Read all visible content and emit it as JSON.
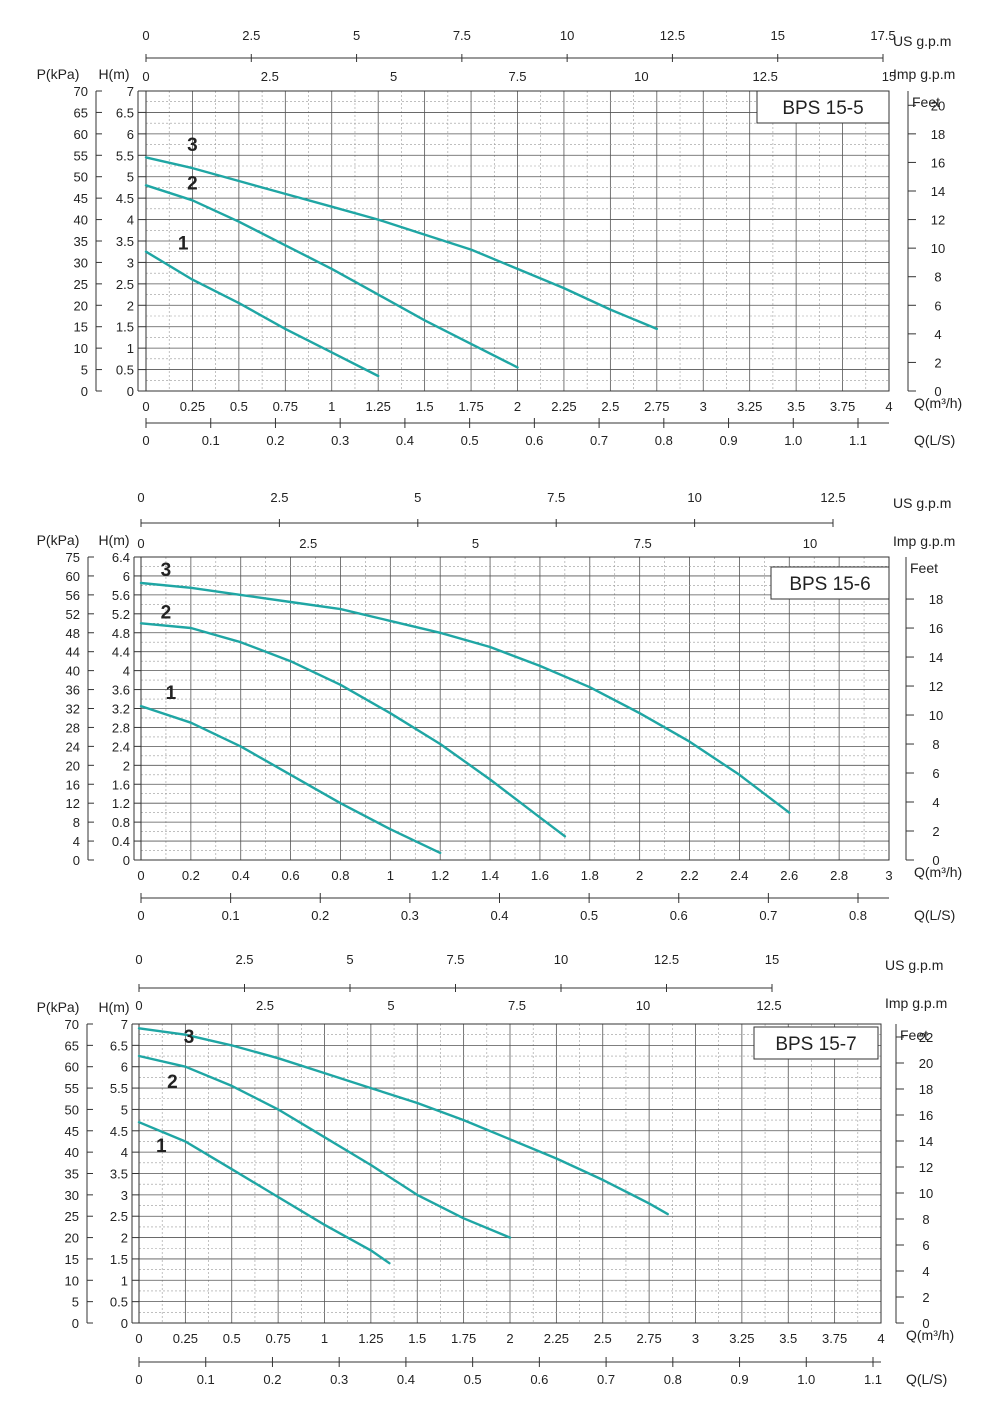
{
  "colors": {
    "curve": "#1fa6a4",
    "grid": "#555555",
    "text": "#222222"
  },
  "chart_data": [
    {
      "type": "line",
      "title": "BPS  15-5",
      "xlabel": "Q(m³/h)",
      "ylabel_left_outer": "P(kPa)",
      "ylabel_left_inner": "H(m)",
      "ylabel_right": "Feet",
      "xlabel_bottom2": "Q(L/S)",
      "xlabel_top1": "US  g.p.m",
      "xlabel_top2": "Imp  g.p.m",
      "xlim": [
        0,
        4
      ],
      "ylim": [
        0,
        7
      ],
      "legend": "top-right",
      "grid": true,
      "x_ticks": [
        "0",
        "0.25",
        "0.5",
        "0.75",
        "1",
        "1.25",
        "1.5",
        "1.75",
        "2",
        "2.25",
        "2.5",
        "2.75",
        "3",
        "3.25",
        "3.5",
        "3.75",
        "4"
      ],
      "h_ticks": [
        "0",
        "0.5",
        "1",
        "1.5",
        "2",
        "2.5",
        "3",
        "3.5",
        "4",
        "4.5",
        "5",
        "5.5",
        "6",
        "6.5",
        "7"
      ],
      "kpa_ticks": [
        "0",
        "5",
        "10",
        "15",
        "20",
        "25",
        "30",
        "35",
        "40",
        "45",
        "50",
        "55",
        "60",
        "65",
        "70"
      ],
      "feet_ticks": [
        "0",
        "2",
        "4",
        "6",
        "8",
        "10",
        "12",
        "14",
        "16",
        "18",
        "20"
      ],
      "ls_ticks": [
        "0",
        "0.1",
        "0.2",
        "0.3",
        "0.4",
        "0.5",
        "0.6",
        "0.7",
        "0.8",
        "0.9",
        "1.0",
        "1.1"
      ],
      "us_ticks": [
        "0",
        "2.5",
        "5",
        "7.5",
        "10",
        "12.5",
        "15",
        "17.5"
      ],
      "imp_ticks": [
        "0",
        "2.5",
        "5",
        "7.5",
        "10",
        "12.5",
        "15"
      ],
      "series": [
        {
          "name": "1",
          "x": [
            0,
            0.25,
            0.5,
            0.75,
            1,
            1.25
          ],
          "y": [
            3.25,
            2.6,
            2.05,
            1.45,
            0.9,
            0.35
          ]
        },
        {
          "name": "2",
          "x": [
            0,
            0.25,
            0.5,
            0.75,
            1,
            1.25,
            1.5,
            1.75,
            2
          ],
          "y": [
            4.8,
            4.45,
            3.95,
            3.4,
            2.85,
            2.25,
            1.65,
            1.1,
            0.55
          ]
        },
        {
          "name": "3",
          "x": [
            0,
            0.25,
            0.5,
            0.75,
            1,
            1.25,
            1.5,
            1.75,
            2,
            2.25,
            2.5,
            2.75
          ],
          "y": [
            5.45,
            5.2,
            4.9,
            4.6,
            4.3,
            4.0,
            3.65,
            3.3,
            2.85,
            2.4,
            1.9,
            1.45
          ]
        }
      ],
      "series_label_pos": [
        [
          0.2,
          3.3
        ],
        [
          0.25,
          4.7
        ],
        [
          0.25,
          5.6
        ]
      ]
    },
    {
      "type": "line",
      "title": "BPS 15-6",
      "xlabel": "Q(m³/h)",
      "ylabel_left_outer": "P(kPa)",
      "ylabel_left_inner": "H(m)",
      "ylabel_right": "Feet",
      "xlabel_bottom2": "Q(L/S)",
      "xlabel_top1": "US  g.p.m",
      "xlabel_top2": "Imp  g.p.m",
      "xlim": [
        0,
        3
      ],
      "ylim": [
        0,
        6.4
      ],
      "legend": "top-right",
      "grid": true,
      "x_ticks": [
        "0",
        "0.2",
        "0.4",
        "0.6",
        "0.8",
        "1",
        "1.2",
        "1.4",
        "1.6",
        "1.8",
        "2",
        "2.2",
        "2.4",
        "2.6",
        "2.8",
        "3"
      ],
      "h_ticks": [
        "0",
        "0.4",
        "0.8",
        "1.2",
        "1.6",
        "2",
        "2.4",
        "2.8",
        "3.2",
        "3.6",
        "4",
        "4.4",
        "4.8",
        "5.2",
        "5.6",
        "6",
        "6.4"
      ],
      "kpa_ticks": [
        "0",
        "4",
        "8",
        "12",
        "16",
        "20",
        "24",
        "28",
        "32",
        "36",
        "40",
        "44",
        "48",
        "52",
        "56",
        "60",
        "75"
      ],
      "feet_ticks": [
        "0",
        "2",
        "4",
        "6",
        "8",
        "10",
        "12",
        "14",
        "16",
        "18"
      ],
      "ls_ticks": [
        "0",
        "0.1",
        "0.2",
        "0.3",
        "0.4",
        "0.5",
        "0.6",
        "0.7",
        "0.8"
      ],
      "us_ticks": [
        "0",
        "2.5",
        "5",
        "7.5",
        "10",
        "12.5"
      ],
      "imp_ticks": [
        "0",
        "2.5",
        "5",
        "7.5",
        "10"
      ],
      "series": [
        {
          "name": "1",
          "x": [
            0,
            0.2,
            0.4,
            0.6,
            0.8,
            1,
            1.2
          ],
          "y": [
            3.25,
            2.9,
            2.4,
            1.8,
            1.2,
            0.65,
            0.15
          ]
        },
        {
          "name": "2",
          "x": [
            0,
            0.2,
            0.4,
            0.6,
            0.8,
            1,
            1.2,
            1.4,
            1.6,
            1.7
          ],
          "y": [
            5.0,
            4.9,
            4.6,
            4.2,
            3.7,
            3.1,
            2.45,
            1.7,
            0.9,
            0.5
          ]
        },
        {
          "name": "3",
          "x": [
            0,
            0.2,
            0.4,
            0.6,
            0.8,
            1,
            1.2,
            1.4,
            1.6,
            1.8,
            2,
            2.2,
            2.4,
            2.6
          ],
          "y": [
            5.85,
            5.75,
            5.6,
            5.45,
            5.3,
            5.05,
            4.8,
            4.5,
            4.1,
            3.65,
            3.1,
            2.5,
            1.8,
            1.0
          ]
        }
      ],
      "series_label_pos": [
        [
          0.12,
          3.4
        ],
        [
          0.1,
          5.1
        ],
        [
          0.1,
          6.0
        ]
      ]
    },
    {
      "type": "line",
      "title": "BPS 15-7",
      "xlabel": "Q(m³/h)",
      "ylabel_left_outer": "P(kPa)",
      "ylabel_left_inner": "H(m)",
      "ylabel_right": "Feet",
      "xlabel_bottom2": "Q(L/S)",
      "xlabel_top1": "US  g.p.m",
      "xlabel_top2": "Imp  g.p.m",
      "xlim": [
        0,
        4
      ],
      "ylim": [
        0,
        7
      ],
      "legend": "top-right",
      "grid": true,
      "x_ticks": [
        "0",
        "0.25",
        "0.5",
        "0.75",
        "1",
        "1.25",
        "1.5",
        "1.75",
        "2",
        "2.25",
        "2.5",
        "2.75",
        "3",
        "3.25",
        "3.5",
        "3.75",
        "4"
      ],
      "h_ticks": [
        "0",
        "0.5",
        "1",
        "1.5",
        "2",
        "2.5",
        "3",
        "3.5",
        "4",
        "4.5",
        "5",
        "5.5",
        "6",
        "6.5",
        "7"
      ],
      "kpa_ticks": [
        "0",
        "5",
        "10",
        "15",
        "20",
        "25",
        "30",
        "35",
        "40",
        "45",
        "50",
        "55",
        "60",
        "65",
        "70"
      ],
      "feet_ticks": [
        "0",
        "2",
        "4",
        "6",
        "8",
        "10",
        "12",
        "14",
        "16",
        "18",
        "20",
        "22"
      ],
      "ls_ticks": [
        "0",
        "0.1",
        "0.2",
        "0.3",
        "0.4",
        "0.5",
        "0.6",
        "0.7",
        "0.8",
        "0.9",
        "1.0",
        "1.1"
      ],
      "us_ticks": [
        "0",
        "2.5",
        "5",
        "7.5",
        "10",
        "12.5",
        "15"
      ],
      "imp_ticks": [
        "0",
        "2.5",
        "5",
        "7.5",
        "10",
        "12.5"
      ],
      "series": [
        {
          "name": "1",
          "x": [
            0,
            0.25,
            0.5,
            0.75,
            1,
            1.25,
            1.35
          ],
          "y": [
            4.7,
            4.25,
            3.6,
            2.95,
            2.3,
            1.7,
            1.4
          ]
        },
        {
          "name": "2",
          "x": [
            0,
            0.25,
            0.5,
            0.75,
            1,
            1.25,
            1.5,
            1.75,
            2
          ],
          "y": [
            6.25,
            6.0,
            5.55,
            5.0,
            4.35,
            3.7,
            3.0,
            2.45,
            2.0
          ]
        },
        {
          "name": "3",
          "x": [
            0,
            0.25,
            0.5,
            0.75,
            1,
            1.25,
            1.5,
            1.75,
            2,
            2.25,
            2.5,
            2.75,
            2.85
          ],
          "y": [
            6.9,
            6.75,
            6.5,
            6.2,
            5.85,
            5.5,
            5.15,
            4.75,
            4.3,
            3.85,
            3.35,
            2.8,
            2.55
          ]
        }
      ],
      "series_label_pos": [
        [
          0.12,
          4.0
        ],
        [
          0.18,
          5.5
        ],
        [
          0.27,
          6.55
        ]
      ]
    }
  ]
}
